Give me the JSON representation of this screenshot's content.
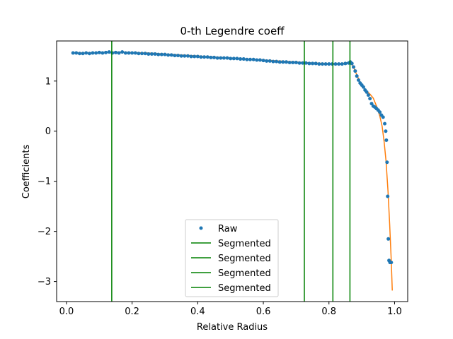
{
  "chart_data": {
    "type": "line",
    "title": "0-th Legendre coeff",
    "xlabel": "Relative Radius",
    "ylabel": "Coefficients",
    "xlim": [
      -0.03,
      1.04
    ],
    "ylim": [
      -3.4,
      1.8
    ],
    "x_ticks": [
      0.0,
      0.2,
      0.4,
      0.6,
      0.8,
      1.0
    ],
    "x_tick_labels": [
      "0.0",
      "0.2",
      "0.4",
      "0.6",
      "0.8",
      "1.0"
    ],
    "y_ticks": [
      1,
      0,
      -1,
      -2,
      -3
    ],
    "y_tick_labels": [
      "1",
      "0",
      "−1",
      "−2",
      "−3"
    ],
    "grid": false,
    "legend_position": "lower center",
    "colors": {
      "raw": "#1f77b4",
      "fit": "#ff7f0e",
      "segmented": "#008000"
    },
    "raw": {
      "name": "Raw",
      "x": [
        0.02,
        0.03,
        0.04,
        0.05,
        0.06,
        0.07,
        0.08,
        0.09,
        0.1,
        0.11,
        0.12,
        0.13,
        0.14,
        0.15,
        0.16,
        0.17,
        0.18,
        0.19,
        0.2,
        0.21,
        0.22,
        0.23,
        0.24,
        0.25,
        0.26,
        0.27,
        0.28,
        0.29,
        0.3,
        0.31,
        0.32,
        0.33,
        0.34,
        0.35,
        0.36,
        0.37,
        0.38,
        0.39,
        0.4,
        0.41,
        0.42,
        0.43,
        0.44,
        0.45,
        0.46,
        0.47,
        0.48,
        0.49,
        0.5,
        0.51,
        0.52,
        0.53,
        0.54,
        0.55,
        0.56,
        0.57,
        0.58,
        0.59,
        0.6,
        0.61,
        0.62,
        0.63,
        0.64,
        0.65,
        0.66,
        0.67,
        0.68,
        0.69,
        0.7,
        0.71,
        0.72,
        0.73,
        0.74,
        0.75,
        0.76,
        0.77,
        0.78,
        0.79,
        0.8,
        0.81,
        0.82,
        0.83,
        0.84,
        0.85,
        0.86,
        0.865,
        0.87,
        0.875,
        0.88,
        0.885,
        0.89,
        0.895,
        0.9,
        0.905,
        0.91,
        0.915,
        0.92,
        0.925,
        0.93,
        0.935,
        0.94,
        0.945,
        0.95,
        0.955,
        0.96,
        0.965,
        0.97,
        0.973,
        0.975,
        0.977,
        0.979,
        0.981,
        0.983,
        0.986,
        0.99
      ],
      "y": [
        1.56,
        1.56,
        1.55,
        1.55,
        1.56,
        1.55,
        1.56,
        1.56,
        1.57,
        1.56,
        1.57,
        1.58,
        1.56,
        1.57,
        1.56,
        1.58,
        1.56,
        1.56,
        1.56,
        1.56,
        1.55,
        1.55,
        1.55,
        1.54,
        1.54,
        1.54,
        1.53,
        1.53,
        1.53,
        1.52,
        1.52,
        1.51,
        1.51,
        1.5,
        1.5,
        1.5,
        1.49,
        1.49,
        1.49,
        1.48,
        1.48,
        1.48,
        1.47,
        1.47,
        1.46,
        1.46,
        1.46,
        1.46,
        1.45,
        1.45,
        1.45,
        1.44,
        1.44,
        1.43,
        1.43,
        1.43,
        1.42,
        1.42,
        1.41,
        1.4,
        1.4,
        1.39,
        1.39,
        1.38,
        1.38,
        1.38,
        1.37,
        1.37,
        1.37,
        1.36,
        1.36,
        1.36,
        1.35,
        1.35,
        1.35,
        1.34,
        1.34,
        1.34,
        1.34,
        1.34,
        1.34,
        1.34,
        1.34,
        1.35,
        1.36,
        1.38,
        1.35,
        1.28,
        1.2,
        1.1,
        1.02,
        0.96,
        0.92,
        0.88,
        0.82,
        0.78,
        0.72,
        0.65,
        0.55,
        0.5,
        0.48,
        0.45,
        0.42,
        0.38,
        0.32,
        0.28,
        0.15,
        0.0,
        -0.18,
        -0.62,
        -1.3,
        -2.15,
        -2.58,
        -2.62,
        -2.62
      ]
    },
    "fit": {
      "x": [
        0.03,
        0.06,
        0.1,
        0.15,
        0.2,
        0.25,
        0.3,
        0.35,
        0.4,
        0.45,
        0.5,
        0.55,
        0.6,
        0.65,
        0.7,
        0.75,
        0.8,
        0.84,
        0.862,
        0.868,
        0.875,
        0.885,
        0.895,
        0.905,
        0.915,
        0.925,
        0.935,
        0.945,
        0.955,
        0.962,
        0.968,
        0.974,
        0.98,
        0.985,
        0.99,
        0.993
      ],
      "y": [
        1.56,
        1.56,
        1.57,
        1.58,
        1.57,
        1.56,
        1.54,
        1.52,
        1.5,
        1.48,
        1.46,
        1.44,
        1.42,
        1.4,
        1.38,
        1.36,
        1.35,
        1.35,
        1.37,
        1.36,
        1.28,
        1.12,
        0.98,
        0.88,
        0.8,
        0.74,
        0.66,
        0.5,
        0.3,
        0.1,
        -0.2,
        -0.6,
        -1.2,
        -1.85,
        -2.6,
        -3.18
      ]
    },
    "segments": [
      {
        "name": "Segmented",
        "x": 0.138
      },
      {
        "name": "Segmented",
        "x": 0.725
      },
      {
        "name": "Segmented",
        "x": 0.812
      },
      {
        "name": "Segmented",
        "x": 0.864
      }
    ],
    "legend": {
      "raw_label": "Raw",
      "segment_labels": [
        "Segmented",
        "Segmented",
        "Segmented",
        "Segmented"
      ]
    }
  }
}
